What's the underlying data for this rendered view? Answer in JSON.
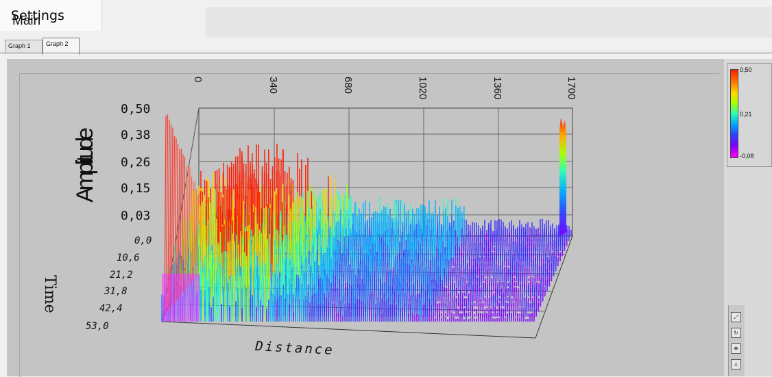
{
  "top_tabs": {
    "main": "Main",
    "settings": "Settings"
  },
  "graph_tabs": [
    "Graph 1",
    "Graph 2"
  ],
  "active_graph_tab": "Graph 2",
  "plot": {
    "ylabel": "Amplitude",
    "zlabel": "Time",
    "xlabel": "Distance",
    "amplitude_ticks": [
      "0,50",
      "0,38",
      "0,26",
      "0,15",
      "0,03"
    ],
    "time_ticks": [
      "0,0",
      "10,6",
      "21,2",
      "31,8",
      "42,4",
      "53,0"
    ],
    "distance_ticks": [
      "0",
      "340",
      "680",
      "1020",
      "1360",
      "1700"
    ]
  },
  "colorbar": {
    "max": "0,50",
    "mid": "0,21",
    "min": "-0,08"
  },
  "colors": {
    "high": "#ff1a00",
    "mid": "#2bffb0",
    "low": "#8a00ff",
    "bg": "#c4c4c4"
  },
  "tool_icons": [
    "zoom-icon",
    "rotate-icon",
    "pan-icon",
    "axes-icon"
  ]
}
